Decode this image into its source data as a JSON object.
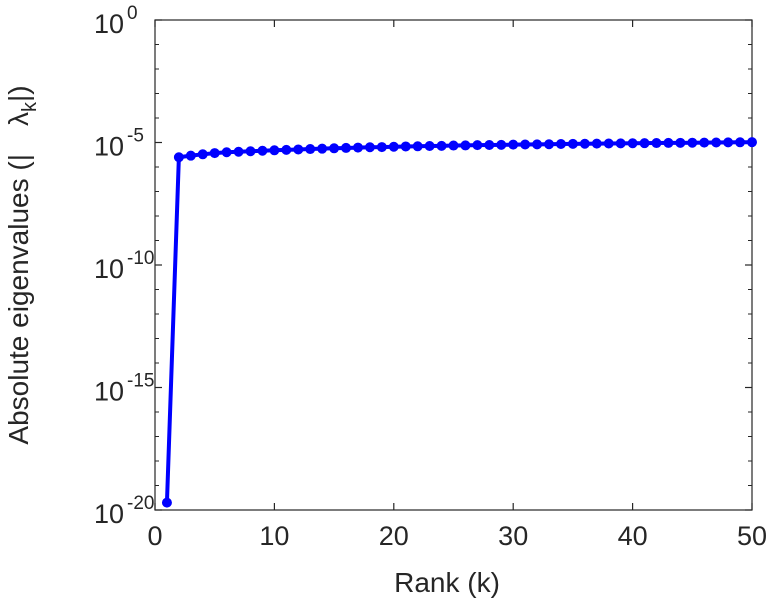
{
  "chart_data": {
    "type": "line",
    "title": "",
    "xlabel": "Rank (k)",
    "ylabel": {
      "prefix": "Absolute eigenvalues (|",
      "symbol": "λ",
      "subscript": "k",
      "suffix": "|)"
    },
    "xlim": [
      0,
      50
    ],
    "ylim": [
      1e-20,
      1
    ],
    "yscale": "log",
    "xticks": [
      0,
      10,
      20,
      30,
      40,
      50
    ],
    "xtick_labels": [
      "0",
      "10",
      "20",
      "30",
      "40",
      "50"
    ],
    "yticks": [
      {
        "base": "10",
        "exp": "0",
        "value": 1
      },
      {
        "base": "10",
        "exp": "-5",
        "value": 1e-05
      },
      {
        "base": "10",
        "exp": "-10",
        "value": 1e-10
      },
      {
        "base": "10",
        "exp": "-15",
        "value": 1e-15
      },
      {
        "base": "10",
        "exp": "-20",
        "value": 1e-20
      }
    ],
    "grid": false,
    "series": [
      {
        "color": "#0000ff",
        "marker": "circle",
        "x": [
          1,
          2,
          3,
          4,
          5,
          6,
          7,
          8,
          9,
          10,
          11,
          12,
          13,
          14,
          15,
          16,
          17,
          18,
          19,
          20,
          21,
          22,
          23,
          24,
          25,
          26,
          27,
          28,
          29,
          30,
          31,
          32,
          33,
          34,
          35,
          36,
          37,
          38,
          39,
          40,
          41,
          42,
          43,
          44,
          45,
          46,
          47,
          48,
          49,
          50
        ],
        "y": [
          2e-20,
          2.5e-06,
          2.9e-06,
          3.3e-06,
          3.7e-06,
          4e-06,
          4.2e-06,
          4.4e-06,
          4.6e-06,
          4.8e-06,
          5e-06,
          5.2e-06,
          5.4e-06,
          5.6e-06,
          5.8e-06,
          6e-06,
          6.2e-06,
          6.4e-06,
          6.5e-06,
          6.7e-06,
          6.9e-06,
          7e-06,
          7.2e-06,
          7.3e-06,
          7.5e-06,
          7.6e-06,
          7.8e-06,
          7.9e-06,
          8e-06,
          8.2e-06,
          8.3e-06,
          8.4e-06,
          8.5e-06,
          8.7e-06,
          8.8e-06,
          8.9e-06,
          9e-06,
          9.1e-06,
          9.2e-06,
          9.3e-06,
          9.4e-06,
          9.5e-06,
          9.6e-06,
          9.7e-06,
          9.8e-06,
          9.9e-06,
          1e-05,
          1.01e-05,
          1.02e-05,
          1.03e-05
        ]
      }
    ]
  }
}
